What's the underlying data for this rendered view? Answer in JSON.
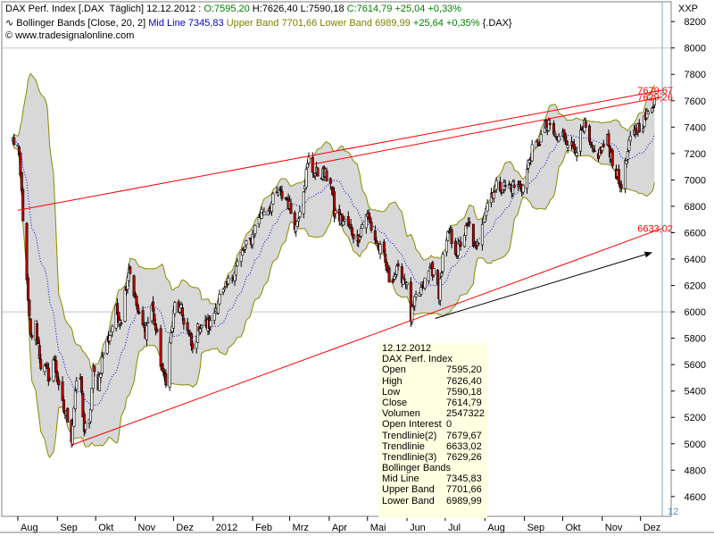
{
  "header": {
    "line1_name": "DAX Perf. Index [.DAX  Täglich] 12.12.2012 : ",
    "line1_open": "O:7595,20",
    "line1_high": " H:7626,40",
    "line1_low": " L:7590,18",
    "line1_close": " C:7614,79",
    "line1_change": " +25,04 +0,33%",
    "line2_name": "Bollinger Bands [Close, 20, 2]",
    "line2_mid": " Mid Line 7345,83",
    "line2_upper": " Upper Band 7701,66",
    "line2_lower": " Lower Band 6989,99",
    "line2_change": " +25,64 +0,35%",
    "line2_sym": " {.DAX}",
    "line3": "© www.tradesignalonline.com"
  },
  "price_scale_label": "XXP",
  "corner_label": "12",
  "info_box": {
    "date": "12.12.2012",
    "symbol": "DAX Perf. Index",
    "rows": [
      {
        "label": "Open",
        "value": "7595,20"
      },
      {
        "label": "High",
        "value": "7626,40"
      },
      {
        "label": "Low",
        "value": "7590,18"
      },
      {
        "label": "Close",
        "value": "7614,79"
      },
      {
        "label": "Volumen",
        "value": "2547322"
      },
      {
        "label": "Open Interest",
        "value": "0"
      },
      {
        "label": "Trendlinie(2)",
        "value": "7679,67"
      },
      {
        "label": "Trendlinie",
        "value": "6633,02"
      },
      {
        "label": "Trendlinie(3)",
        "value": "7629,26"
      }
    ],
    "section": "Bollinger Bands",
    "rows2": [
      {
        "label": "Mid Line",
        "value": "7345,83"
      },
      {
        "label": "Upper Band",
        "value": "7701,66"
      },
      {
        "label": "Lower Band",
        "value": "6989,99"
      }
    ]
  },
  "colors": {
    "up": "#ffffff",
    "down": "#c00000",
    "band_fill": "#d8d8d8",
    "band_line": "#8a8a00",
    "mid_line": "#0000cc",
    "trendline": "#ff0000",
    "open_color": "#008000",
    "mid_color": "#0000cc",
    "upper_color": "#808000",
    "change_color": "#008000"
  },
  "chart_data": {
    "type": "candlestick",
    "x_tick_labels": [
      "Aug",
      "Sep",
      "Okt",
      "Nov",
      "Dez",
      "2012",
      "Feb",
      "Mrz",
      "Apr",
      "Mai",
      "Jun",
      "Jul",
      "Aug",
      "Sep",
      "Okt",
      "Nov",
      "Dez"
    ],
    "y_tick_labels": [
      "4600",
      "4800",
      "5000",
      "5200",
      "5400",
      "5600",
      "5800",
      "6000",
      "6200",
      "6400",
      "6600",
      "6800",
      "7000",
      "7200",
      "7400",
      "7600",
      "7800",
      "8000",
      "8200"
    ],
    "ylim": [
      4450,
      8350
    ],
    "grid_levels": [
      6000,
      8000
    ],
    "close_anchors": [
      {
        "date": "2011-07-28",
        "value": 7300
      },
      {
        "date": "2011-08-01",
        "value": 7250
      },
      {
        "date": "2011-08-04",
        "value": 6900
      },
      {
        "date": "2011-08-08",
        "value": 6200
      },
      {
        "date": "2011-08-11",
        "value": 5800
      },
      {
        "date": "2011-08-15",
        "value": 5900
      },
      {
        "date": "2011-08-19",
        "value": 5600
      },
      {
        "date": "2011-08-23",
        "value": 5550
      },
      {
        "date": "2011-08-26",
        "value": 5500
      },
      {
        "date": "2011-08-30",
        "value": 5650
      },
      {
        "date": "2011-09-02",
        "value": 5400
      },
      {
        "date": "2011-09-06",
        "value": 5250
      },
      {
        "date": "2011-09-09",
        "value": 5200
      },
      {
        "date": "2011-09-12",
        "value": 5050
      },
      {
        "date": "2011-09-15",
        "value": 5400
      },
      {
        "date": "2011-09-19",
        "value": 5500
      },
      {
        "date": "2011-09-22",
        "value": 5100
      },
      {
        "date": "2011-09-26",
        "value": 5150
      },
      {
        "date": "2011-09-29",
        "value": 5550
      },
      {
        "date": "2011-10-03",
        "value": 5450
      },
      {
        "date": "2011-10-07",
        "value": 5700
      },
      {
        "date": "2011-10-11",
        "value": 5800
      },
      {
        "date": "2011-10-17",
        "value": 6000
      },
      {
        "date": "2011-10-21",
        "value": 5950
      },
      {
        "date": "2011-10-27",
        "value": 6350
      },
      {
        "date": "2011-10-31",
        "value": 6150
      },
      {
        "date": "2011-11-04",
        "value": 5950
      },
      {
        "date": "2011-11-09",
        "value": 5850
      },
      {
        "date": "2011-11-14",
        "value": 6050
      },
      {
        "date": "2011-11-18",
        "value": 5800
      },
      {
        "date": "2011-11-23",
        "value": 5500
      },
      {
        "date": "2011-11-25",
        "value": 5500
      },
      {
        "date": "2011-11-28",
        "value": 5750
      },
      {
        "date": "2011-12-02",
        "value": 6050
      },
      {
        "date": "2011-12-07",
        "value": 6000
      },
      {
        "date": "2011-12-12",
        "value": 5850
      },
      {
        "date": "2011-12-16",
        "value": 5700
      },
      {
        "date": "2011-12-21",
        "value": 5900
      },
      {
        "date": "2011-12-30",
        "value": 5900
      },
      {
        "date": "2012-01-05",
        "value": 6100
      },
      {
        "date": "2012-01-10",
        "value": 6150
      },
      {
        "date": "2012-01-17",
        "value": 6300
      },
      {
        "date": "2012-01-24",
        "value": 6450
      },
      {
        "date": "2012-01-31",
        "value": 6550
      },
      {
        "date": "2012-02-07",
        "value": 6750
      },
      {
        "date": "2012-02-14",
        "value": 6800
      },
      {
        "date": "2012-02-21",
        "value": 6900
      },
      {
        "date": "2012-02-28",
        "value": 6850
      },
      {
        "date": "2012-03-06",
        "value": 6650
      },
      {
        "date": "2012-03-12",
        "value": 6950
      },
      {
        "date": "2012-03-16",
        "value": 7150
      },
      {
        "date": "2012-03-20",
        "value": 7050
      },
      {
        "date": "2012-03-26",
        "value": 7050
      },
      {
        "date": "2012-04-02",
        "value": 7000
      },
      {
        "date": "2012-04-05",
        "value": 6750
      },
      {
        "date": "2012-04-10",
        "value": 6700
      },
      {
        "date": "2012-04-16",
        "value": 6650
      },
      {
        "date": "2012-04-23",
        "value": 6550
      },
      {
        "date": "2012-04-30",
        "value": 6750
      },
      {
        "date": "2012-05-07",
        "value": 6550
      },
      {
        "date": "2012-05-14",
        "value": 6400
      },
      {
        "date": "2012-05-18",
        "value": 6250
      },
      {
        "date": "2012-05-24",
        "value": 6300
      },
      {
        "date": "2012-05-31",
        "value": 6250
      },
      {
        "date": "2012-06-04",
        "value": 5950
      },
      {
        "date": "2012-06-08",
        "value": 6100
      },
      {
        "date": "2012-06-14",
        "value": 6200
      },
      {
        "date": "2012-06-20",
        "value": 6350
      },
      {
        "date": "2012-06-26",
        "value": 6150
      },
      {
        "date": "2012-06-29",
        "value": 6400
      },
      {
        "date": "2012-07-04",
        "value": 6600
      },
      {
        "date": "2012-07-10",
        "value": 6450
      },
      {
        "date": "2012-07-16",
        "value": 6600
      },
      {
        "date": "2012-07-20",
        "value": 6650
      },
      {
        "date": "2012-07-25",
        "value": 6450
      },
      {
        "date": "2012-07-31",
        "value": 6750
      },
      {
        "date": "2012-08-06",
        "value": 6900
      },
      {
        "date": "2012-08-10",
        "value": 6950
      },
      {
        "date": "2012-08-16",
        "value": 6950
      },
      {
        "date": "2012-08-22",
        "value": 6950
      },
      {
        "date": "2012-08-28",
        "value": 6950
      },
      {
        "date": "2012-08-31",
        "value": 6950
      },
      {
        "date": "2012-09-06",
        "value": 7200
      },
      {
        "date": "2012-09-13",
        "value": 7300
      },
      {
        "date": "2012-09-17",
        "value": 7400
      },
      {
        "date": "2012-09-21",
        "value": 7400
      },
      {
        "date": "2012-09-27",
        "value": 7300
      },
      {
        "date": "2012-10-02",
        "value": 7350
      },
      {
        "date": "2012-10-08",
        "value": 7250
      },
      {
        "date": "2012-10-12",
        "value": 7250
      },
      {
        "date": "2012-10-18",
        "value": 7400
      },
      {
        "date": "2012-10-24",
        "value": 7200
      },
      {
        "date": "2012-10-30",
        "value": 7200
      },
      {
        "date": "2012-11-05",
        "value": 7300
      },
      {
        "date": "2012-11-09",
        "value": 7150
      },
      {
        "date": "2012-11-15",
        "value": 6950
      },
      {
        "date": "2012-11-19",
        "value": 7100
      },
      {
        "date": "2012-11-23",
        "value": 7300
      },
      {
        "date": "2012-11-29",
        "value": 7400
      },
      {
        "date": "2012-12-04",
        "value": 7450
      },
      {
        "date": "2012-12-07",
        "value": 7500
      },
      {
        "date": "2012-12-12",
        "value": 7615
      }
    ],
    "bollinger": {
      "period": 20,
      "multiplier": 2
    },
    "trendlines": [
      {
        "name": "Trendlinie(2)",
        "from": {
          "date": "2011-08-01",
          "value": 6770
        },
        "to": {
          "date": "2012-12-18",
          "value": 7679.67
        },
        "label": "7679,67"
      },
      {
        "name": "Trendlinie(3)",
        "from": {
          "date": "2012-03-20",
          "value": 7120
        },
        "to": {
          "date": "2012-12-18",
          "value": 7629.26
        },
        "label": "7629,26"
      },
      {
        "name": "Trendlinie",
        "from": {
          "date": "2011-09-12",
          "value": 4990
        },
        "to": {
          "date": "2012-12-18",
          "value": 6633.02
        },
        "label": "6633,02"
      }
    ],
    "arrow": {
      "from": {
        "date": "2012-06-23",
        "value": 5950
      },
      "to": {
        "date": "2012-12-10",
        "value": 6450
      }
    }
  }
}
